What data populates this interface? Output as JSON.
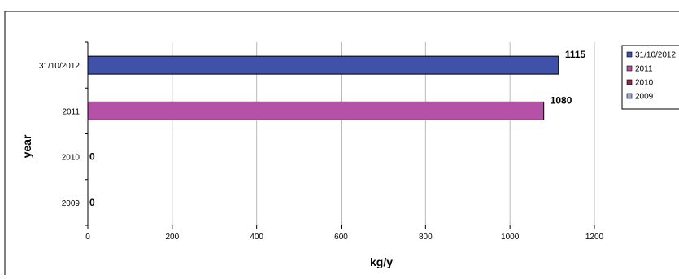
{
  "chart_data": {
    "type": "bar",
    "orientation": "horizontal",
    "categories": [
      "31/10/2012",
      "2011",
      "2010",
      "2009"
    ],
    "values": [
      1115,
      1080,
      0,
      0
    ],
    "data_labels": [
      "1115",
      "1080",
      "0",
      "0"
    ],
    "xlabel": "kg/y",
    "ylabel": "year",
    "xlim": [
      0,
      1200
    ],
    "x_ticks": [
      "0",
      "200",
      "400",
      "600",
      "800",
      "1000",
      "1200"
    ],
    "grid": "vertical",
    "legend_position": "right",
    "legend": [
      "31/10/2012",
      "2011",
      "2010",
      "2009"
    ],
    "colors": [
      "#3F51A8",
      "#B552A8",
      "#8E2A4E",
      "#9AA0D8"
    ]
  }
}
